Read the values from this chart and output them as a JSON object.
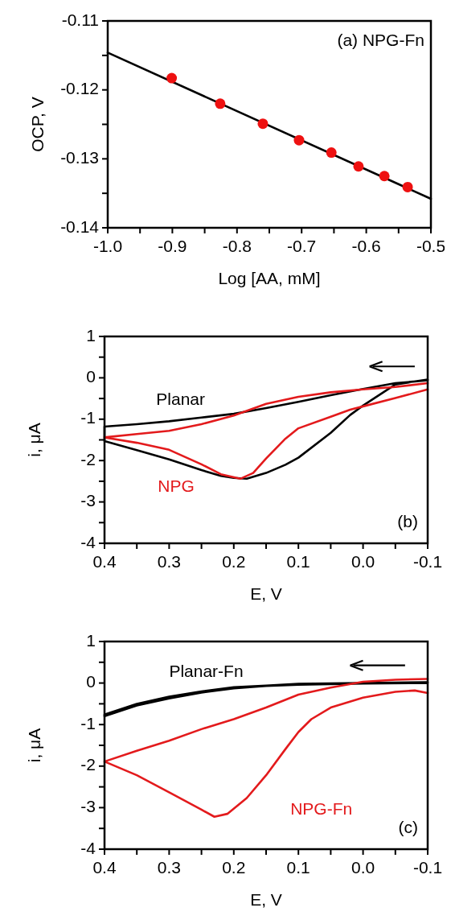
{
  "chart_data": [
    {
      "type": "scatter",
      "xlabel": "Log [AA, mM]",
      "ylabel": "OCP, V",
      "annotations": [
        "(a) NPG-Fn"
      ],
      "xlim": [
        -1,
        -0.5
      ],
      "ylim": [
        -0.14,
        -0.11
      ],
      "xticks": [
        {
          "value": -1,
          "label": "-1.0"
        },
        {
          "value": -0.95,
          "label": null
        },
        -0.9,
        {
          "value": -0.85,
          "label": null
        },
        -0.8,
        {
          "value": -0.75,
          "label": null
        },
        -0.7,
        {
          "value": -0.65,
          "label": null
        },
        -0.6,
        {
          "value": -0.55,
          "label": null
        },
        -0.5
      ],
      "yticks": [
        -0.14,
        {
          "value": -0.135,
          "label": null
        },
        -0.13,
        {
          "value": -0.125,
          "label": null
        },
        -0.12,
        {
          "value": -0.115,
          "label": null
        },
        -0.11
      ],
      "series": [
        {
          "type": "line",
          "color": "#000000",
          "x": [
            -1,
            -0.5
          ],
          "values": [
            -0.1146,
            -0.1358
          ]
        },
        {
          "type": "scatter",
          "color": "#ee1111",
          "marker": "circle",
          "x": [
            -0.901,
            -0.826,
            -0.76,
            -0.704,
            -0.654,
            -0.612,
            -0.572,
            -0.536
          ],
          "values": [
            -0.1183,
            -0.122,
            -0.1249,
            -0.1273,
            -0.1291,
            -0.1311,
            -0.1325,
            -0.1341
          ]
        }
      ]
    },
    {
      "type": "line",
      "xlabel": "E, V",
      "ylabel": "i, μA",
      "annotations": [
        "(b)"
      ],
      "xlim": [
        0.4,
        -0.1
      ],
      "ylim": [
        -4,
        1
      ],
      "xticks": [
        0.4,
        {
          "value": 0.35,
          "label": null
        },
        0.3,
        {
          "value": 0.25,
          "label": null
        },
        0.2,
        {
          "value": 0.15,
          "label": null
        },
        0.1,
        {
          "value": 0.05,
          "label": null
        },
        {
          "value": 0,
          "label": "0.0"
        },
        {
          "value": -0.05,
          "label": null
        },
        -0.1
      ],
      "yticks": [
        -4,
        {
          "value": -3.5,
          "label": null
        },
        -3,
        {
          "value": -2.5,
          "label": null
        },
        -2,
        {
          "value": -1.5,
          "label": null
        },
        -1,
        {
          "value": -0.5,
          "label": null
        },
        0,
        {
          "value": 0.5,
          "label": null
        },
        1
      ],
      "series": [
        {
          "name": "Planar",
          "color": "#000000",
          "x": [
            -0.1,
            -0.05,
            0,
            0.05,
            0.1,
            0.15,
            0.2,
            0.25,
            0.3,
            0.35,
            0.4,
            0.4,
            0.35,
            0.3,
            0.25,
            0.22,
            0.2,
            0.18,
            0.15,
            0.12,
            0.1,
            0.05,
            0.02,
            0,
            -0.05,
            -0.1
          ],
          "values": [
            -0.06,
            -0.13,
            -0.27,
            -0.42,
            -0.58,
            -0.73,
            -0.87,
            -0.96,
            -1.05,
            -1.12,
            -1.18,
            -1.53,
            -1.75,
            -1.97,
            -2.23,
            -2.37,
            -2.42,
            -2.44,
            -2.3,
            -2.1,
            -1.93,
            -1.33,
            -0.9,
            -0.67,
            -0.16,
            -0.04
          ]
        },
        {
          "name": "NPG",
          "color": "#e31a1c",
          "x": [
            -0.1,
            -0.05,
            0,
            0.05,
            0.1,
            0.15,
            0.2,
            0.25,
            0.3,
            0.35,
            0.4,
            0.4,
            0.35,
            0.3,
            0.25,
            0.22,
            0.19,
            0.17,
            0.15,
            0.12,
            0.1,
            0.05,
            0.02,
            0,
            -0.05,
            -0.1
          ],
          "values": [
            -0.13,
            -0.22,
            -0.28,
            -0.35,
            -0.46,
            -0.63,
            -0.91,
            -1.12,
            -1.28,
            -1.36,
            -1.44,
            -1.44,
            -1.57,
            -1.74,
            -2.09,
            -2.33,
            -2.44,
            -2.3,
            -1.95,
            -1.47,
            -1.22,
            -0.94,
            -0.77,
            -0.69,
            -0.49,
            -0.28
          ]
        }
      ]
    },
    {
      "type": "line",
      "xlabel": "E, V",
      "ylabel": "i, μA",
      "annotations": [
        "(c)"
      ],
      "xlim": [
        0.4,
        -0.1
      ],
      "ylim": [
        -4,
        1
      ],
      "xticks": [
        0.4,
        {
          "value": 0.35,
          "label": null
        },
        0.3,
        {
          "value": 0.25,
          "label": null
        },
        0.2,
        {
          "value": 0.15,
          "label": null
        },
        0.1,
        {
          "value": 0.05,
          "label": null
        },
        {
          "value": 0,
          "label": "0.0"
        },
        {
          "value": -0.05,
          "label": null
        },
        -0.1
      ],
      "yticks": [
        -4,
        {
          "value": -3.5,
          "label": null
        },
        -3,
        {
          "value": -2.5,
          "label": null
        },
        -2,
        {
          "value": -1.5,
          "label": null
        },
        -1,
        {
          "value": -0.5,
          "label": null
        },
        0,
        {
          "value": 0.5,
          "label": null
        },
        1
      ],
      "series": [
        {
          "name": "Planar-Fn",
          "color": "#000000",
          "x": [
            -0.1,
            0,
            0.1,
            0.15,
            0.2,
            0.25,
            0.3,
            0.35,
            0.4,
            0.4,
            0.35,
            0.3,
            0.25,
            0.2,
            0.15,
            0.1,
            0,
            -0.1
          ],
          "values": [
            0.02,
            0,
            -0.02,
            -0.06,
            -0.1,
            -0.2,
            -0.33,
            -0.5,
            -0.76,
            -0.8,
            -0.54,
            -0.37,
            -0.23,
            -0.13,
            -0.07,
            -0.04,
            -0.01,
            0
          ]
        },
        {
          "name": "NPG-Fn",
          "color": "#e31a1c",
          "x": [
            -0.1,
            -0.05,
            0,
            0.05,
            0.1,
            0.15,
            0.2,
            0.25,
            0.3,
            0.35,
            0.4,
            0.4,
            0.35,
            0.3,
            0.25,
            0.23,
            0.21,
            0.18,
            0.15,
            0.12,
            0.1,
            0.08,
            0.05,
            0,
            -0.05,
            -0.08,
            -0.1
          ],
          "values": [
            0.1,
            0.08,
            0.03,
            -0.11,
            -0.28,
            -0.59,
            -0.87,
            -1.11,
            -1.39,
            -1.63,
            -1.89,
            -1.89,
            -2.22,
            -2.63,
            -3.05,
            -3.22,
            -3.15,
            -2.77,
            -2.22,
            -1.59,
            -1.18,
            -0.87,
            -0.59,
            -0.35,
            -0.21,
            -0.18,
            -0.24
          ]
        }
      ]
    }
  ]
}
